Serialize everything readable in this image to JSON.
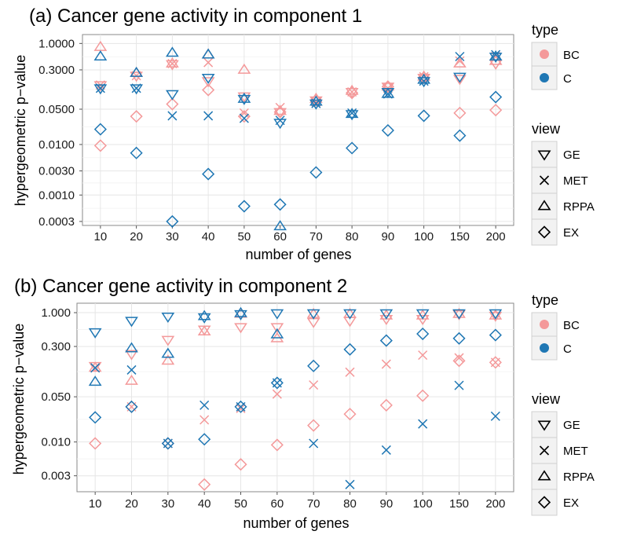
{
  "chart_data": [
    {
      "type": "scatter",
      "title": "(a) Cancer gene activity in component 1",
      "xlabel": "number of genes",
      "ylabel": "hypergeometric p−value",
      "yscale": "log10",
      "ylim": [
        0.00025,
        1.5
      ],
      "categories": [
        "10",
        "20",
        "30",
        "40",
        "50",
        "60",
        "70",
        "80",
        "90",
        "100",
        "150",
        "200"
      ],
      "yticks": [
        {
          "value": 1.0,
          "label": "1.0000"
        },
        {
          "value": 0.3,
          "label": "0.3000"
        },
        {
          "value": 0.05,
          "label": "0.0500"
        },
        {
          "value": 0.01,
          "label": "0.0100"
        },
        {
          "value": 0.003,
          "label": "0.0030"
        },
        {
          "value": 0.001,
          "label": "0.0010"
        },
        {
          "value": 0.0003,
          "label": "0.0003"
        }
      ],
      "series": [
        {
          "type": "BC",
          "view": "GE",
          "values": [
            0.15,
            0.23,
            0.39,
            0.18,
            0.09,
            0.044,
            0.075,
            0.11,
            0.14,
            0.21,
            0.2,
            0.4
          ]
        },
        {
          "type": "BC",
          "view": "MET",
          "values": [
            0.15,
            0.23,
            0.4,
            0.42,
            0.042,
            0.054,
            0.07,
            0.11,
            0.13,
            0.22,
            0.45,
            0.55
          ]
        },
        {
          "type": "BC",
          "view": "RPPA",
          "values": [
            0.85,
            0.26,
            0.4,
            0.6,
            0.3,
            0.046,
            0.08,
            0.115,
            0.14,
            0.22,
            0.4,
            0.45
          ]
        },
        {
          "type": "BC",
          "view": "EX",
          "values": [
            0.0095,
            0.036,
            0.063,
            0.12,
            0.036,
            0.044,
            0.075,
            0.105,
            0.14,
            0.21,
            0.042,
            0.048
          ]
        },
        {
          "type": "C",
          "view": "GE",
          "values": [
            0.13,
            0.13,
            0.1,
            0.21,
            0.08,
            0.027,
            0.065,
            0.04,
            0.11,
            0.18,
            0.22,
            0.55
          ]
        },
        {
          "type": "C",
          "view": "MET",
          "values": [
            0.13,
            0.13,
            0.037,
            0.037,
            0.033,
            0.03,
            0.065,
            0.042,
            0.1,
            0.18,
            0.55,
            0.6
          ]
        },
        {
          "type": "C",
          "view": "RPPA",
          "values": [
            0.55,
            0.26,
            0.65,
            0.6,
            0.08,
            0.00024,
            0.07,
            0.04,
            0.1,
            0.19,
            null,
            0.55
          ]
        },
        {
          "type": "C",
          "view": "EX",
          "values": [
            0.02,
            0.0068,
            0.0003,
            0.0026,
            0.0006,
            0.00065,
            0.0028,
            0.0085,
            0.019,
            0.037,
            0.015,
            0.087
          ]
        }
      ],
      "legend": {
        "position": "right"
      }
    },
    {
      "type": "scatter",
      "title": "(b) Cancer gene activity in component 2",
      "xlabel": "number of genes",
      "ylabel": "hypergeometric p−value",
      "yscale": "log10",
      "ylim": [
        0.0017,
        1.4
      ],
      "categories": [
        "10",
        "20",
        "30",
        "40",
        "50",
        "60",
        "70",
        "80",
        "90",
        "100",
        "150",
        "200"
      ],
      "yticks": [
        {
          "value": 1.0,
          "label": "1.000"
        },
        {
          "value": 0.3,
          "label": "0.300"
        },
        {
          "value": 0.05,
          "label": "0.050"
        },
        {
          "value": 0.01,
          "label": "0.010"
        },
        {
          "value": 0.003,
          "label": "0.003"
        }
      ],
      "series": [
        {
          "type": "BC",
          "view": "GE",
          "values": [
            0.15,
            0.23,
            0.38,
            0.55,
            0.6,
            0.6,
            0.72,
            0.75,
            0.8,
            0.8,
            0.95,
            0.9
          ]
        },
        {
          "type": "BC",
          "view": "MET",
          "values": [
            0.14,
            0.035,
            0.0095,
            0.022,
            0.033,
            0.055,
            0.076,
            0.12,
            0.16,
            0.22,
            0.2,
            0.17
          ]
        },
        {
          "type": "BC",
          "view": "RPPA",
          "values": [
            0.14,
            0.088,
            0.18,
            0.51,
            0.96,
            0.4,
            0.95,
            0.95,
            0.9,
            0.9,
            0.95,
            0.9
          ]
        },
        {
          "type": "BC",
          "view": "EX",
          "values": [
            0.0095,
            0.035,
            0.0095,
            0.0022,
            0.0045,
            0.009,
            0.018,
            0.027,
            0.037,
            0.052,
            0.18,
            0.17
          ]
        },
        {
          "type": "C",
          "view": "GE",
          "values": [
            0.5,
            0.75,
            0.87,
            0.85,
            0.95,
            0.98,
            0.98,
            0.98,
            0.98,
            0.98,
            0.98,
            0.98
          ]
        },
        {
          "type": "C",
          "view": "MET",
          "values": [
            0.14,
            0.13,
            0.0095,
            0.037,
            0.035,
            0.082,
            0.0095,
            0.0022,
            0.0075,
            0.019,
            0.075,
            0.025
          ]
        },
        {
          "type": "C",
          "view": "RPPA",
          "values": [
            0.085,
            0.28,
            0.23,
            0.88,
            0.98,
            0.46,
            null,
            null,
            null,
            null,
            null,
            null
          ]
        },
        {
          "type": "C",
          "view": "EX",
          "values": [
            0.024,
            0.035,
            0.0095,
            0.011,
            0.035,
            0.082,
            0.15,
            0.27,
            0.37,
            0.47,
            0.4,
            0.45
          ]
        }
      ],
      "legend": {
        "position": "right"
      }
    }
  ],
  "legend": {
    "type_title": "type",
    "type_entries": [
      {
        "label": "BC",
        "color": "#f4999a"
      },
      {
        "label": "C",
        "color": "#1f77b4"
      }
    ],
    "view_title": "view",
    "view_entries": [
      {
        "label": "GE",
        "shape": "triangle-down"
      },
      {
        "label": "MET",
        "shape": "x"
      },
      {
        "label": "RPPA",
        "shape": "triangle-up"
      },
      {
        "label": "EX",
        "shape": "diamond"
      }
    ]
  }
}
